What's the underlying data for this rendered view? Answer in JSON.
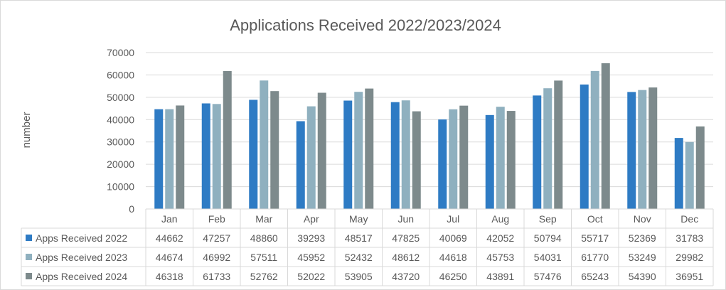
{
  "chart_data": {
    "type": "bar",
    "title": "Applications Received 2022/2023/2024",
    "ylabel": "number",
    "xlabel": "",
    "ylim": [
      0,
      70000
    ],
    "yticks": [
      0,
      10000,
      20000,
      30000,
      40000,
      50000,
      60000,
      70000
    ],
    "grid": true,
    "legend": "data-table",
    "categories": [
      "Jan",
      "Feb",
      "Mar",
      "Apr",
      "May",
      "Jun",
      "Jul",
      "Aug",
      "Sep",
      "Oct",
      "Nov",
      "Dec"
    ],
    "series": [
      {
        "name": "Apps Received 2022",
        "color": "#2e7bc4",
        "values": [
          44662,
          47257,
          48860,
          39293,
          48517,
          47825,
          40069,
          42052,
          50794,
          55717,
          52369,
          31783
        ]
      },
      {
        "name": "Apps Received 2023",
        "color": "#8fb0bf",
        "values": [
          44674,
          46992,
          57511,
          45952,
          52432,
          48612,
          44618,
          45753,
          54031,
          61770,
          53249,
          29982
        ]
      },
      {
        "name": "Apps Received 2024",
        "color": "#7d8a8c",
        "values": [
          46318,
          61733,
          52762,
          52022,
          53905,
          43720,
          46250,
          43891,
          57476,
          65243,
          54390,
          36951
        ]
      }
    ]
  }
}
